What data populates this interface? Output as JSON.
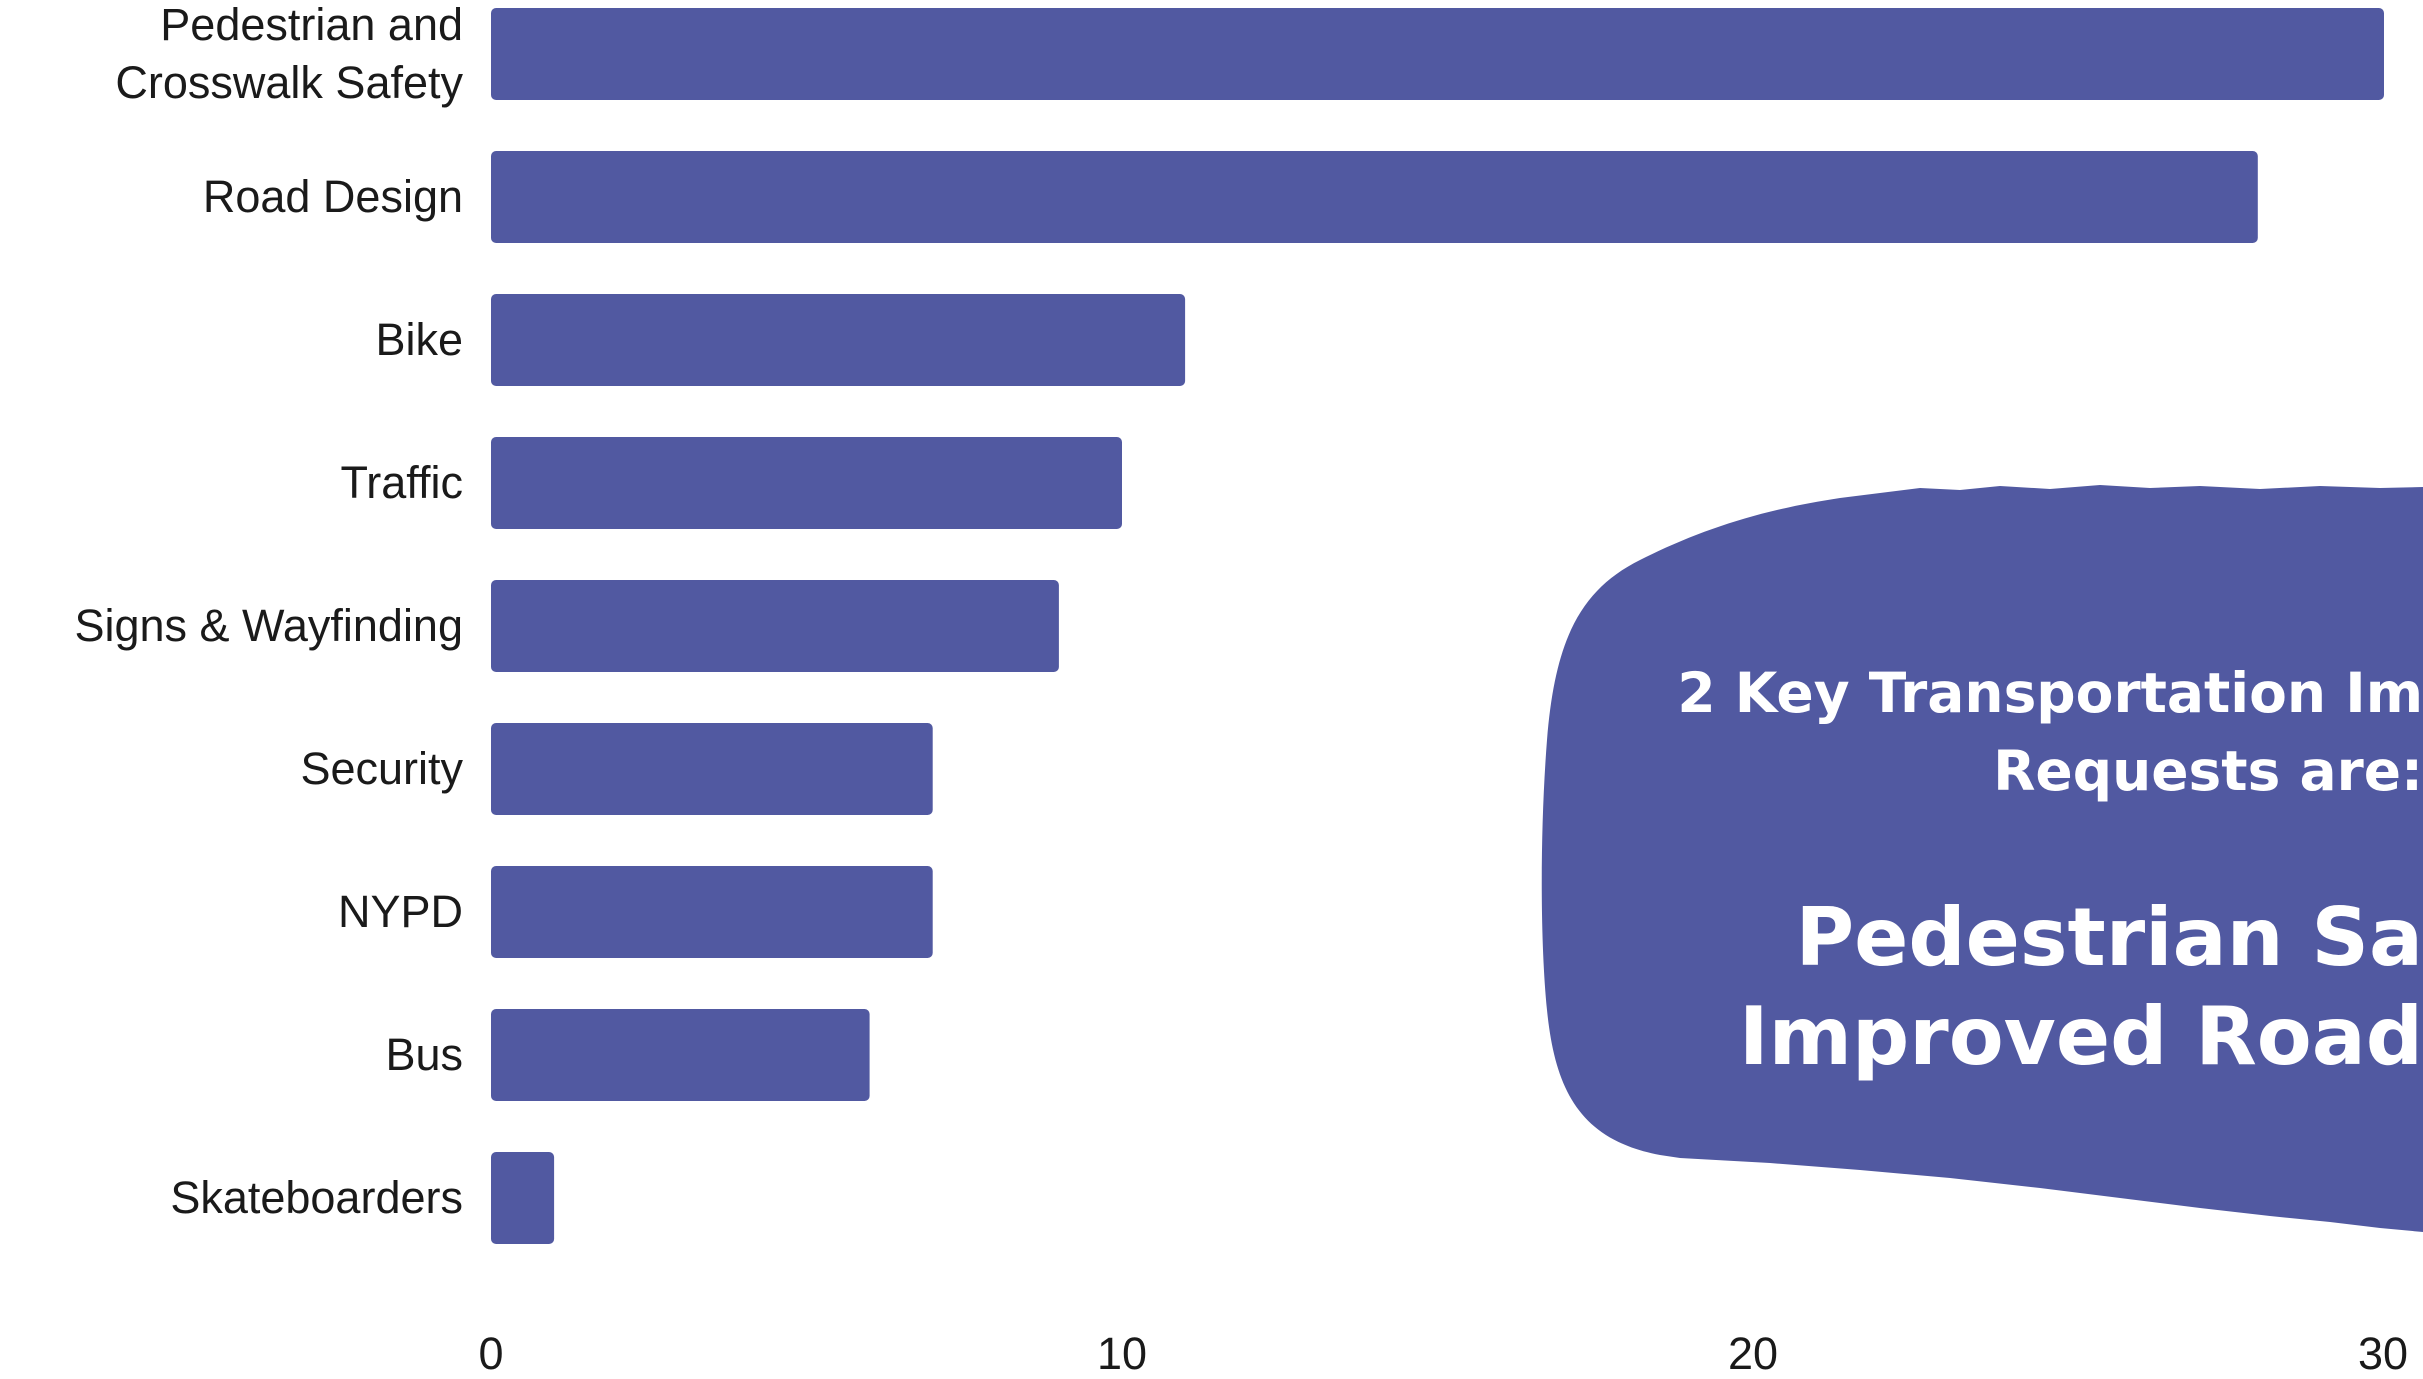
{
  "colors": {
    "bar": "#5159a1",
    "callout": "#5159a1",
    "callout_text": "#ffffff",
    "label_text": "#1a1a1a",
    "background": "#ffffff"
  },
  "chart_data": {
    "type": "bar",
    "orientation": "horizontal",
    "title": "",
    "xlabel": "",
    "ylabel": "",
    "categories": [
      [
        "Pedestrian and",
        "Crosswalk Safety"
      ],
      [
        "Road Design"
      ],
      [
        "Bike"
      ],
      [
        "Traffic"
      ],
      [
        "Signs & Wayfinding"
      ],
      [
        "Security"
      ],
      [
        "NYPD"
      ],
      [
        "Bus"
      ],
      [
        "Skateboarders"
      ]
    ],
    "values": [
      30,
      28,
      11,
      10,
      9,
      7,
      7,
      6,
      1
    ],
    "xlim": [
      0,
      30
    ],
    "xticks": [
      "0",
      "10",
      "20",
      "30"
    ],
    "grid": false,
    "legend": "none"
  },
  "callout": {
    "intro_lines": [
      "2 Key Transportation Im",
      "Requests are:"
    ],
    "headline_lines": [
      "Pedestrian Sa",
      "Improved Road"
    ]
  }
}
